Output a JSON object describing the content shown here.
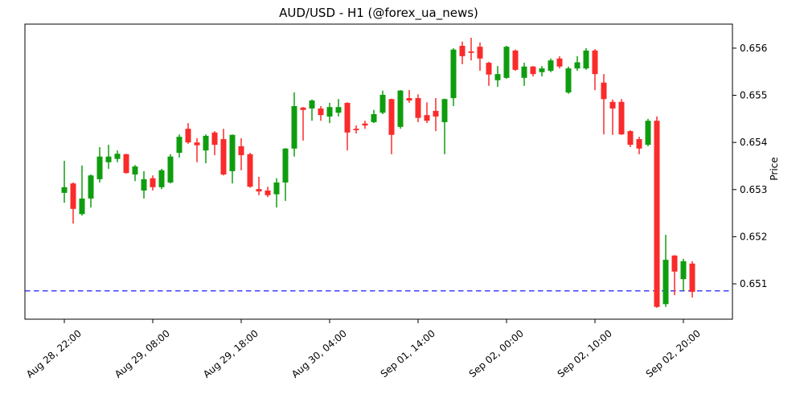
{
  "page": {
    "title": "AUD/USD - H1 (@forex_ua_news)"
  },
  "chart_data": {
    "type": "candlestick",
    "title": "AUD/USD - H1 (@forex_ua_news)",
    "ylabel": "Price",
    "grid": false,
    "y_ticks": [
      0.651,
      0.652,
      0.653,
      0.654,
      0.655,
      0.656
    ],
    "ylim": [
      0.65025,
      0.65651
    ],
    "x_ticks": [
      {
        "index": 0,
        "label": "Aug 28, 22:00"
      },
      {
        "index": 10,
        "label": "Aug 29, 08:00"
      },
      {
        "index": 20,
        "label": "Aug 29, 18:00"
      },
      {
        "index": 30,
        "label": "Aug 30, 04:00"
      },
      {
        "index": 40,
        "label": "Sep 01, 14:00"
      },
      {
        "index": 50,
        "label": "Sep 02, 00:00"
      },
      {
        "index": 60,
        "label": "Sep 02, 10:00"
      },
      {
        "index": 70,
        "label": "Sep 02, 20:00"
      }
    ],
    "hline": {
      "price": 0.65085,
      "color": "#0000ff",
      "style": "dashed"
    },
    "colors": {
      "up": "#0f9d0f",
      "down": "#fa2b2b",
      "frame": "#000000",
      "background": "#ffffff"
    },
    "candles_format": [
      "open",
      "high",
      "low",
      "close"
    ],
    "candles": [
      [
        0.65293,
        0.65361,
        0.65272,
        0.65305
      ],
      [
        0.65313,
        0.65315,
        0.65228,
        0.65259
      ],
      [
        0.65248,
        0.65351,
        0.65245,
        0.65281
      ],
      [
        0.65281,
        0.65332,
        0.65262,
        0.6533
      ],
      [
        0.65322,
        0.6539,
        0.65315,
        0.6537
      ],
      [
        0.65358,
        0.65395,
        0.65344,
        0.6537
      ],
      [
        0.65365,
        0.65383,
        0.65358,
        0.65376
      ],
      [
        0.65375,
        0.65376,
        0.65334,
        0.65335
      ],
      [
        0.65332,
        0.65352,
        0.65318,
        0.65349
      ],
      [
        0.65298,
        0.65339,
        0.65281,
        0.65322
      ],
      [
        0.65324,
        0.6533,
        0.65298,
        0.65305
      ],
      [
        0.65305,
        0.65344,
        0.65301,
        0.65341
      ],
      [
        0.65315,
        0.65375,
        0.65313,
        0.6537
      ],
      [
        0.65378,
        0.65417,
        0.65368,
        0.65412
      ],
      [
        0.65429,
        0.65441,
        0.65397,
        0.654
      ],
      [
        0.654,
        0.65409,
        0.65358,
        0.65394
      ],
      [
        0.65383,
        0.65417,
        0.65356,
        0.65414
      ],
      [
        0.65421,
        0.65424,
        0.65373,
        0.65395
      ],
      [
        0.65407,
        0.65429,
        0.6533,
        0.65332
      ],
      [
        0.65339,
        0.65417,
        0.65313,
        0.65416
      ],
      [
        0.65392,
        0.65409,
        0.65341,
        0.65373
      ],
      [
        0.65375,
        0.65378,
        0.65304,
        0.65306
      ],
      [
        0.65301,
        0.65327,
        0.65288,
        0.65296
      ],
      [
        0.65298,
        0.65306,
        0.65284,
        0.65288
      ],
      [
        0.6529,
        0.65324,
        0.65262,
        0.65315
      ],
      [
        0.65315,
        0.65388,
        0.65276,
        0.65387
      ],
      [
        0.65387,
        0.65506,
        0.6537,
        0.65477
      ],
      [
        0.65474,
        0.65475,
        0.65404,
        0.65469
      ],
      [
        0.65472,
        0.65491,
        0.65446,
        0.65489
      ],
      [
        0.65472,
        0.65477,
        0.65446,
        0.65458
      ],
      [
        0.65455,
        0.65484,
        0.65441,
        0.65475
      ],
      [
        0.65463,
        0.65492,
        0.65455,
        0.65475
      ],
      [
        0.65484,
        0.65485,
        0.65383,
        0.65421
      ],
      [
        0.65429,
        0.65436,
        0.65419,
        0.65426
      ],
      [
        0.6544,
        0.65446,
        0.65429,
        0.65436
      ],
      [
        0.65443,
        0.65469,
        0.65441,
        0.6546
      ],
      [
        0.65463,
        0.6551,
        0.6546,
        0.65501
      ],
      [
        0.65492,
        0.65493,
        0.65375,
        0.65416
      ],
      [
        0.65433,
        0.65511,
        0.65429,
        0.6551
      ],
      [
        0.65494,
        0.65511,
        0.65484,
        0.65489
      ],
      [
        0.65494,
        0.65502,
        0.65443,
        0.65452
      ],
      [
        0.65458,
        0.65485,
        0.65441,
        0.65446
      ],
      [
        0.65467,
        0.65494,
        0.65424,
        0.65455
      ],
      [
        0.65443,
        0.65493,
        0.65375,
        0.65492
      ],
      [
        0.65494,
        0.656,
        0.65477,
        0.65597
      ],
      [
        0.65605,
        0.65614,
        0.65566,
        0.65583
      ],
      [
        0.65593,
        0.65622,
        0.65574,
        0.6559
      ],
      [
        0.65603,
        0.65612,
        0.65552,
        0.65578
      ],
      [
        0.65569,
        0.65571,
        0.6552,
        0.65544
      ],
      [
        0.65532,
        0.65562,
        0.65518,
        0.65545
      ],
      [
        0.65537,
        0.65605,
        0.65535,
        0.65603
      ],
      [
        0.65595,
        0.65597,
        0.65552,
        0.65554
      ],
      [
        0.65537,
        0.65569,
        0.6552,
        0.65561
      ],
      [
        0.65561,
        0.65562,
        0.6554,
        0.65545
      ],
      [
        0.65549,
        0.65562,
        0.6554,
        0.65557
      ],
      [
        0.65552,
        0.65578,
        0.65549,
        0.65574
      ],
      [
        0.65578,
        0.65583,
        0.65557,
        0.65561
      ],
      [
        0.65506,
        0.65561,
        0.65503,
        0.65557
      ],
      [
        0.65557,
        0.65583,
        0.65552,
        0.6557
      ],
      [
        0.65557,
        0.656,
        0.65554,
        0.65595
      ],
      [
        0.65595,
        0.65598,
        0.65511,
        0.65545
      ],
      [
        0.65527,
        0.65545,
        0.65417,
        0.65492
      ],
      [
        0.65486,
        0.65491,
        0.65416,
        0.65472
      ],
      [
        0.65486,
        0.65492,
        0.65416,
        0.65417
      ],
      [
        0.65424,
        0.65426,
        0.6539,
        0.65395
      ],
      [
        0.65407,
        0.65412,
        0.65375,
        0.65387
      ],
      [
        0.65395,
        0.6545,
        0.65392,
        0.65446
      ],
      [
        0.65446,
        0.65455,
        0.65049,
        0.65051
      ],
      [
        0.65057,
        0.65204,
        0.65051,
        0.65151
      ],
      [
        0.6516,
        0.65161,
        0.65076,
        0.65126
      ],
      [
        0.6511,
        0.65153,
        0.65085,
        0.65148
      ],
      [
        0.65143,
        0.65148,
        0.65071,
        0.65083
      ]
    ]
  }
}
